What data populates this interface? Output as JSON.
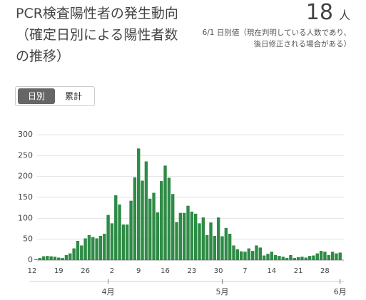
{
  "header": {
    "title": "PCR検査陽性者の発生動向（確定日別による陽性者数の推移）",
    "latest_value": 18,
    "latest_unit": "人",
    "note": "6/1 日別値（現在判明している人数であり、後日修正される場合がある）",
    "tabs": [
      "日別",
      "累計"
    ]
  },
  "chart_data": {
    "type": "bar",
    "color": "#2e8b46",
    "categories": [
      "12",
      null,
      null,
      null,
      null,
      null,
      null,
      "19",
      null,
      null,
      null,
      null,
      null,
      null,
      "26",
      null,
      null,
      null,
      null,
      null,
      null,
      "2",
      null,
      null,
      null,
      null,
      null,
      null,
      "9",
      null,
      null,
      null,
      null,
      null,
      null,
      "16",
      null,
      null,
      null,
      null,
      null,
      null,
      "23",
      null,
      null,
      null,
      null,
      null,
      null,
      "30",
      null,
      null,
      null,
      null,
      null,
      null,
      "7",
      null,
      null,
      null,
      null,
      null,
      null,
      "14",
      null,
      null,
      null,
      null,
      null,
      null,
      "21",
      null,
      null,
      null,
      null,
      null,
      null,
      "28",
      null,
      null,
      null,
      null
    ],
    "values": [
      0,
      2,
      5,
      9,
      10,
      9,
      8,
      6,
      5,
      12,
      16,
      28,
      46,
      35,
      52,
      60,
      55,
      52,
      58,
      63,
      108,
      88,
      155,
      133,
      85,
      85,
      142,
      198,
      267,
      190,
      236,
      147,
      161,
      114,
      189,
      226,
      197,
      158,
      91,
      113,
      113,
      130,
      116,
      111,
      88,
      102,
      60,
      90,
      58,
      102,
      57,
      77,
      63,
      35,
      26,
      21,
      20,
      28,
      22,
      35,
      30,
      11,
      15,
      20,
      12,
      10,
      8,
      5,
      12,
      5,
      7,
      8,
      6,
      10,
      11,
      16,
      22,
      20,
      12,
      20,
      16,
      18
    ],
    "month_labels": [
      "4月",
      "5月",
      "6月"
    ],
    "ylim": [
      0,
      300
    ],
    "yticks": [
      0,
      50,
      100,
      150,
      200,
      250,
      300
    ],
    "grid": true
  }
}
